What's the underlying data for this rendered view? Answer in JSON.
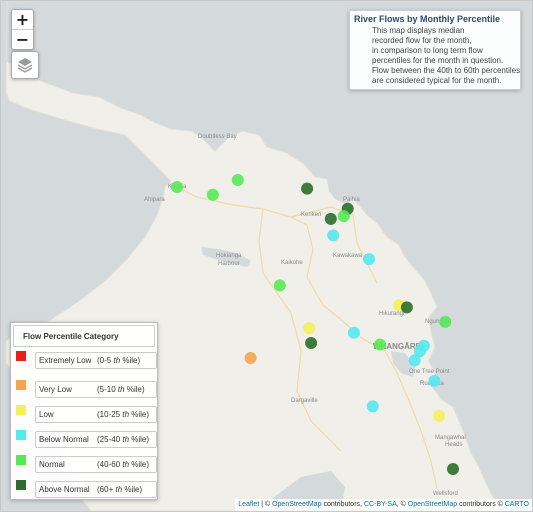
{
  "info": {
    "title": "River Flows by Monthly Percentile",
    "lines": [
      "This map displays median",
      "recorded flow for the month,",
      "in comparison to long term flow",
      "percentiles for the month in question.",
      "Flow between the 40th to 60th percentiles",
      "are considered typical for the month."
    ]
  },
  "controls": {
    "zoom_in": "+",
    "zoom_out": "−"
  },
  "legend": {
    "title": "Flow Percentile Category",
    "suffix": "%ile)",
    "sup": "th",
    "items": [
      {
        "name": "Extremely Low",
        "range": "(0-5",
        "color": "#e8201c"
      },
      {
        "name": "Very Low",
        "range": "(5-10",
        "color": "#f2a54f"
      },
      {
        "name": "Low",
        "range": "(10-25",
        "color": "#f4f05a"
      },
      {
        "name": "Below Normal",
        "range": "(25-40",
        "color": "#55e8f0"
      },
      {
        "name": "Normal",
        "range": "(40-60",
        "color": "#55ea55"
      },
      {
        "name": "Above Normal",
        "range": "(60+",
        "color": "#2a6e2a"
      }
    ]
  },
  "places": {
    "doubtless_bay": "Doubtless Bay",
    "kaitaia": "Kaitaia",
    "ahipara": "Ahipara",
    "paihia": "Paihia",
    "kerikeri": "Kerikeri",
    "kawakawa": "Kawakawa",
    "hokianga": "Hokianga",
    "harbour": "Harbour",
    "kaikohe": "Kaikohe",
    "hikurangi": "Hikurangi",
    "ngunguru": "Ngunguru",
    "whangarei": "WHANGĀREI",
    "one_tree_point": "One Tree Point",
    "ruakaka": "Ruakaka",
    "dargaville": "Dargaville",
    "mangawhai": "Mangawhai",
    "heads": "Heads",
    "wellsford": "Wellsford"
  },
  "attribution": {
    "leaflet": "Leaflet",
    "sep1": " | © ",
    "osm1": "OpenStreetMap",
    "contrib1": " contributors, ",
    "ccbysa": "CC-BY-SA",
    "sep2": ", © ",
    "osm2": "OpenStreetMap",
    "contrib2": " contributors © ",
    "carto": "CARTO"
  },
  "sites": [
    {
      "lat": -35.0955,
      "lon": 173.1984,
      "category": "Normal"
    },
    {
      "lat": -35.1205,
      "lon": 173.3608,
      "category": "Normal"
    },
    {
      "lat": -35.0729,
      "lon": 173.4737,
      "category": "Normal"
    },
    {
      "lat": -35.1006,
      "lon": 173.7878,
      "category": "Above Normal"
    },
    {
      "lat": -35.1662,
      "lon": 173.9719,
      "category": "Above Normal"
    },
    {
      "lat": -35.1901,
      "lon": 173.9536,
      "category": "Normal"
    },
    {
      "lat": -35.1991,
      "lon": 173.8952,
      "category": "Above Normal"
    },
    {
      "lat": -35.2528,
      "lon": 173.906,
      "category": "Below Normal"
    },
    {
      "lat": -35.3298,
      "lon": 174.0682,
      "category": "Below Normal"
    },
    {
      "lat": -35.4151,
      "lon": 173.6639,
      "category": "Normal"
    },
    {
      "lat": -35.4792,
      "lon": 174.2049,
      "category": "Low"
    },
    {
      "lat": -35.4866,
      "lon": 174.2399,
      "category": "Above Normal"
    },
    {
      "lat": -35.5337,
      "lon": 174.4139,
      "category": "Normal"
    },
    {
      "lat": -35.5541,
      "lon": 173.7971,
      "category": "Low"
    },
    {
      "lat": -35.5689,
      "lon": 173.9996,
      "category": "Below Normal"
    },
    {
      "lat": -35.6022,
      "lon": 173.8057,
      "category": "Above Normal"
    },
    {
      "lat": -35.607,
      "lon": 174.118,
      "category": "Normal"
    },
    {
      "lat": -35.6109,
      "lon": 174.3165,
      "category": "Below Normal"
    },
    {
      "lat": -35.629,
      "lon": 174.2986,
      "category": "Below Normal"
    },
    {
      "lat": -35.6509,
      "lon": 173.5319,
      "category": "Very Low"
    },
    {
      "lat": -35.6585,
      "lon": 174.2753,
      "category": "Below Normal"
    },
    {
      "lat": -35.7253,
      "lon": 174.3645,
      "category": "Below Normal"
    },
    {
      "lat": -35.8079,
      "lon": 174.0848,
      "category": "Below Normal"
    },
    {
      "lat": -35.8389,
      "lon": 174.386,
      "category": "Low"
    },
    {
      "lat": -36.0113,
      "lon": 174.4487,
      "category": "Above Normal"
    }
  ]
}
